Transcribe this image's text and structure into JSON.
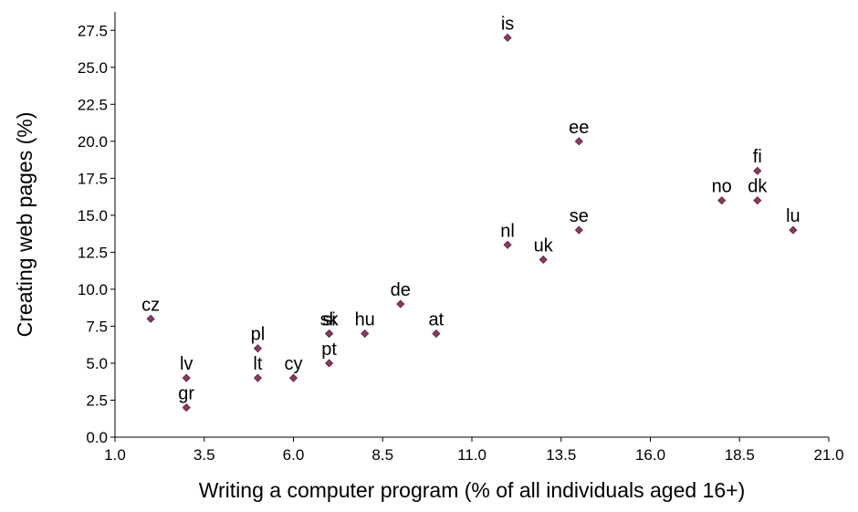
{
  "chart_data": {
    "type": "scatter",
    "title": "",
    "xlabel": "Writing a computer program (% of all individuals aged 16+)",
    "ylabel": "Creating web pages (%)",
    "xlim": [
      1.0,
      21.0
    ],
    "ylim": [
      0.0,
      28.75
    ],
    "xticks": [
      "1.0",
      "3.5",
      "6.0",
      "8.5",
      "11.0",
      "13.5",
      "16.0",
      "18.5",
      "21.0"
    ],
    "yticks": [
      "0.0",
      "2.5",
      "5.0",
      "7.5",
      "10.0",
      "12.5",
      "15.0",
      "17.5",
      "20.0",
      "22.5",
      "25.0",
      "27.5"
    ],
    "grid": false,
    "marker_color": "#8B3A62",
    "points": [
      {
        "label": "is",
        "x": 12,
        "y": 27
      },
      {
        "label": "ee",
        "x": 14,
        "y": 20
      },
      {
        "label": "fi",
        "x": 19,
        "y": 18
      },
      {
        "label": "no",
        "x": 18,
        "y": 16
      },
      {
        "label": "dk",
        "x": 19,
        "y": 16
      },
      {
        "label": "se",
        "x": 14,
        "y": 14
      },
      {
        "label": "lu",
        "x": 20,
        "y": 14
      },
      {
        "label": "nl",
        "x": 12,
        "y": 13
      },
      {
        "label": "uk",
        "x": 13,
        "y": 12
      },
      {
        "label": "de",
        "x": 9,
        "y": 9
      },
      {
        "label": "cz",
        "x": 2,
        "y": 8
      },
      {
        "label": "si",
        "x": 7,
        "y": 7
      },
      {
        "label": "sk",
        "x": 7,
        "y": 7
      },
      {
        "label": "hu",
        "x": 8,
        "y": 7
      },
      {
        "label": "at",
        "x": 10,
        "y": 7
      },
      {
        "label": "pl",
        "x": 5,
        "y": 6
      },
      {
        "label": "pt",
        "x": 7,
        "y": 5
      },
      {
        "label": "lv",
        "x": 3,
        "y": 4
      },
      {
        "label": "lt",
        "x": 5,
        "y": 4
      },
      {
        "label": "cy",
        "x": 6,
        "y": 4
      },
      {
        "label": "gr",
        "x": 3,
        "y": 2
      }
    ]
  }
}
